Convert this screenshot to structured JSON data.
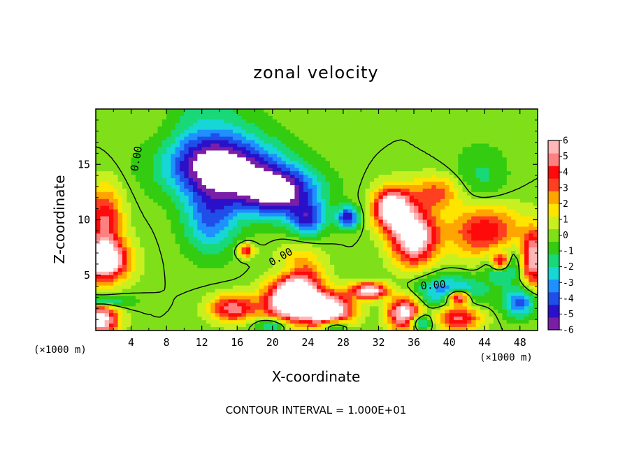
{
  "chart_data": {
    "type": "heatmap",
    "title": "zonal velocity",
    "xlabel": "X-coordinate",
    "ylabel": "Z-coordinate",
    "x_unit_label": "(×1000 m)",
    "xlim": [
      0,
      50
    ],
    "ylim": [
      0,
      20
    ],
    "x_ticks": [
      "4",
      "8",
      "12",
      "16",
      "20",
      "24",
      "28",
      "32",
      "36",
      "40",
      "44",
      "48"
    ],
    "y_ticks": [
      "5",
      "10",
      "15"
    ],
    "colorbar": {
      "range": [
        -6,
        6
      ],
      "ticks": [
        "6",
        "5",
        "4",
        "3",
        "2",
        "1",
        "0",
        "-1",
        "-2",
        "-3",
        "-4",
        "-5",
        "-6"
      ],
      "colors": [
        "#7a1ea8",
        "#2a10c8",
        "#1f4ee8",
        "#1e90ff",
        "#16d6d6",
        "#18d878",
        "#33cc11",
        "#7fe01a",
        "#c8f020",
        "#ffe400",
        "#ffa500",
        "#ff4020",
        "#ff0a0a",
        "#ff8080",
        "#ffb6b6"
      ],
      "overflow_color": "#ffffff"
    },
    "contour_labels": [
      "0.00",
      "0.00",
      "0.00"
    ],
    "annotation": "CONTOUR INTERVAL = 1.000E+01",
    "features": [
      {
        "x": 12.5,
        "z": 19.0,
        "sx": 5,
        "sz": 5,
        "v": -1.5
      },
      {
        "x": 14.0,
        "z": 14.8,
        "sx": 6.2,
        "sz": 2.8,
        "v": -6.5
      },
      {
        "x": 20.5,
        "z": 12.5,
        "sx": 4.5,
        "sz": 2.2,
        "v": -6.5
      },
      {
        "x": 13.0,
        "z": 10.0,
        "sx": 3,
        "sz": 3,
        "v": -3.5
      },
      {
        "x": 24.0,
        "z": 10.0,
        "sx": 2,
        "sz": 1.5,
        "v": -4
      },
      {
        "x": 28.5,
        "z": 10.2,
        "sx": 1.2,
        "sz": 1,
        "v": -5
      },
      {
        "x": 7.5,
        "z": 17.0,
        "sx": 3,
        "sz": 5,
        "v": 0.5
      },
      {
        "x": 1.0,
        "z": 10.0,
        "sx": 2,
        "sz": 3,
        "v": 4.5
      },
      {
        "x": 0.8,
        "z": 6.3,
        "sx": 2.8,
        "sz": 1.8,
        "v": 8
      },
      {
        "x": 0.5,
        "z": 2.6,
        "sx": 3,
        "sz": 0.6,
        "v": -3.5
      },
      {
        "x": 0.5,
        "z": 1.0,
        "sx": 2,
        "sz": 1.5,
        "v": 7
      },
      {
        "x": 17.0,
        "z": 7.2,
        "sx": 0.9,
        "sz": 0.6,
        "v": 4.5
      },
      {
        "x": 23.0,
        "z": 4.5,
        "sx": 2.5,
        "sz": 2.5,
        "v": 5
      },
      {
        "x": 15.5,
        "z": 2.0,
        "sx": 2.5,
        "sz": 1.2,
        "v": 5
      },
      {
        "x": 22.0,
        "z": 2.5,
        "sx": 3,
        "sz": 1.8,
        "v": 7.5
      },
      {
        "x": 26.5,
        "z": 1.8,
        "sx": 2.5,
        "sz": 1.5,
        "v": 8
      },
      {
        "x": 22.0,
        "z": 5.5,
        "sx": 2,
        "sz": 1,
        "v": -2
      },
      {
        "x": 20.0,
        "z": 0.5,
        "sx": 2,
        "sz": 0.7,
        "v": -3
      },
      {
        "x": 27.0,
        "z": 0.4,
        "sx": 1.5,
        "sz": 0.6,
        "v": -4
      },
      {
        "x": 33.5,
        "z": 11.0,
        "sx": 2,
        "sz": 1.8,
        "v": 8
      },
      {
        "x": 36.0,
        "z": 8.5,
        "sx": 2.5,
        "sz": 2.5,
        "v": 7.5
      },
      {
        "x": 31.0,
        "z": 3.6,
        "sx": 2,
        "sz": 0.7,
        "v": 7
      },
      {
        "x": 35.0,
        "z": 1.5,
        "sx": 1.8,
        "sz": 1.5,
        "v": 7.5
      },
      {
        "x": 36.5,
        "z": 0.8,
        "sx": 1.5,
        "sz": 0.8,
        "v": -4
      },
      {
        "x": 40.0,
        "z": 3.5,
        "sx": 4,
        "sz": 1.5,
        "v": -3.5
      },
      {
        "x": 38.5,
        "z": 12.5,
        "sx": 3,
        "sz": 1.5,
        "v": 3
      },
      {
        "x": 43.5,
        "z": 13.5,
        "sx": 3,
        "sz": 3,
        "v": -1.5
      },
      {
        "x": 44.0,
        "z": 9.0,
        "sx": 4,
        "sz": 2.5,
        "v": 4.5
      },
      {
        "x": 46.0,
        "z": 6.0,
        "sx": 1.8,
        "sz": 1.5,
        "v": -4
      },
      {
        "x": 45.8,
        "z": 6.2,
        "sx": 1.0,
        "sz": 0.8,
        "v": 7
      },
      {
        "x": 41.0,
        "z": 3.0,
        "sx": 1.2,
        "sz": 0.6,
        "v": 7
      },
      {
        "x": 41.0,
        "z": 1.2,
        "sx": 2.5,
        "sz": 1.2,
        "v": 5
      },
      {
        "x": 48.0,
        "z": 2.5,
        "sx": 1.8,
        "sz": 1.3,
        "v": -4
      },
      {
        "x": 49.5,
        "z": 6.5,
        "sx": 1.2,
        "sz": 2.5,
        "v": 6
      }
    ]
  }
}
